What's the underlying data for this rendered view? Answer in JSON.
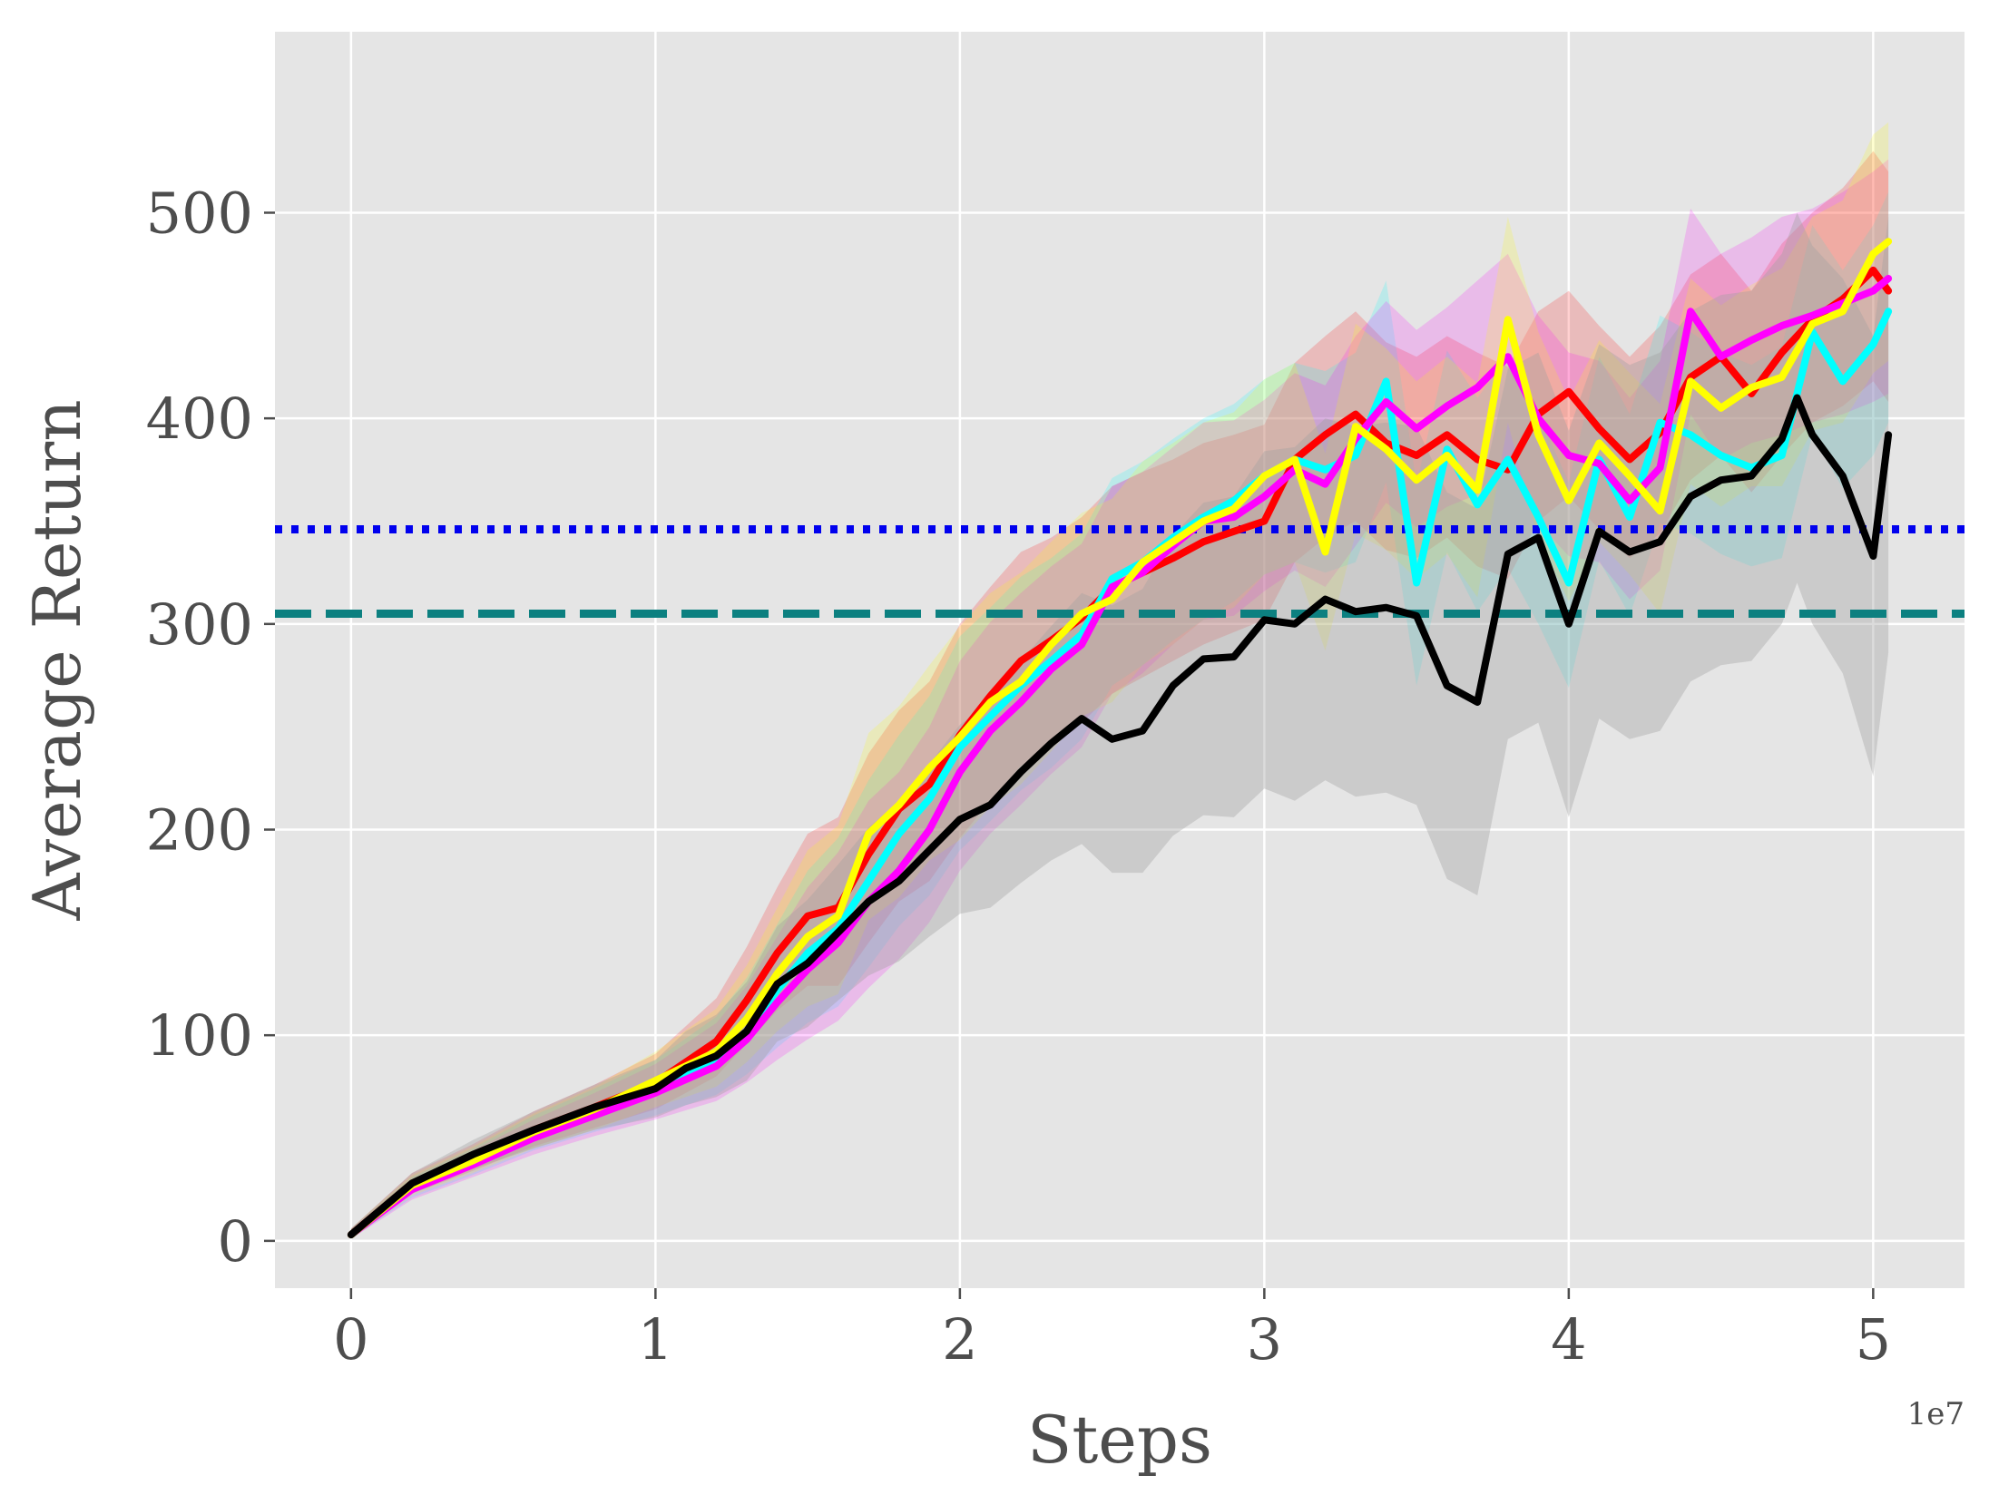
{
  "chart_data": {
    "type": "line",
    "title": "",
    "xlabel": "Steps",
    "ylabel": "Average Return",
    "x_offset_label": "1e7",
    "x_scale": 10000000,
    "xlim": [
      -0.25,
      5.3
    ],
    "ylim": [
      -23,
      588
    ],
    "xticks": [
      0,
      1,
      2,
      3,
      4,
      5
    ],
    "xtick_labels": [
      "0",
      "1",
      "2",
      "3",
      "4",
      "5"
    ],
    "yticks": [
      0,
      100,
      200,
      300,
      400,
      500
    ],
    "ytick_labels": [
      "0",
      "100",
      "200",
      "300",
      "400",
      "500"
    ],
    "grid": true,
    "background": "#e5e5e5",
    "grid_color": "#ffffff",
    "reference_lines": [
      {
        "y": 346,
        "color": "#0000ee",
        "style": "dotted"
      },
      {
        "y": 305,
        "color": "#0c8080",
        "style": "dashed"
      }
    ],
    "series": [
      {
        "color": "#ff0000",
        "x": [
          0,
          0.2,
          0.4,
          0.6,
          0.8,
          1.0,
          1.2,
          1.3,
          1.4,
          1.5,
          1.6,
          1.7,
          1.8,
          1.9,
          2.0,
          2.1,
          2.2,
          2.3,
          2.4,
          2.5,
          2.6,
          2.7,
          2.8,
          2.9,
          3.0,
          3.1,
          3.2,
          3.3,
          3.4,
          3.5,
          3.6,
          3.7,
          3.8,
          3.9,
          4.0,
          4.1,
          4.2,
          4.3,
          4.4,
          4.5,
          4.6,
          4.7,
          4.8,
          4.9,
          5.0,
          5.05
        ],
        "y": [
          3,
          28,
          40,
          54,
          65,
          77,
          97,
          117,
          140,
          158,
          162,
          188,
          210,
          222,
          246,
          265,
          282,
          292,
          303,
          318,
          325,
          332,
          340,
          345,
          350,
          380,
          392,
          402,
          388,
          382,
          392,
          380,
          375,
          402,
          413,
          395,
          380,
          393,
          420,
          430,
          412,
          432,
          448,
          458,
          472,
          462
        ],
        "band_upper": [
          6,
          33,
          47,
          63,
          76,
          91,
          118,
          143,
          172,
          198,
          206,
          237,
          258,
          272,
          300,
          318,
          335,
          342,
          352,
          367,
          374,
          380,
          388,
          392,
          397,
          427,
          440,
          452,
          437,
          430,
          440,
          432,
          425,
          452,
          462,
          445,
          430,
          445,
          470,
          480,
          462,
          485,
          500,
          512,
          530,
          520
        ],
        "band_lower": [
          1,
          23,
          34,
          46,
          55,
          64,
          80,
          96,
          112,
          124,
          124,
          145,
          165,
          175,
          196,
          214,
          231,
          240,
          252,
          266,
          274,
          282,
          290,
          296,
          302,
          330,
          342,
          350,
          336,
          332,
          342,
          328,
          322,
          350,
          362,
          346,
          332,
          344,
          370,
          382,
          364,
          382,
          398,
          406,
          418,
          408
        ]
      },
      {
        "color": "#00ffff",
        "x": [
          0,
          0.2,
          0.4,
          0.6,
          0.8,
          1.0,
          1.2,
          1.3,
          1.4,
          1.5,
          1.6,
          1.7,
          1.8,
          1.9,
          2.0,
          2.1,
          2.2,
          2.3,
          2.4,
          2.5,
          2.6,
          2.7,
          2.8,
          2.9,
          3.0,
          3.1,
          3.2,
          3.3,
          3.4,
          3.5,
          3.6,
          3.7,
          3.8,
          3.9,
          4.0,
          4.1,
          4.2,
          4.3,
          4.4,
          4.5,
          4.6,
          4.7,
          4.8,
          4.9,
          5.0,
          5.05
        ],
        "y": [
          3,
          26,
          38,
          52,
          63,
          74,
          88,
          102,
          122,
          140,
          152,
          175,
          198,
          215,
          240,
          255,
          270,
          282,
          295,
          322,
          330,
          342,
          352,
          360,
          372,
          380,
          375,
          382,
          418,
          320,
          385,
          358,
          380,
          352,
          320,
          380,
          352,
          398,
          392,
          382,
          376,
          382,
          442,
          418,
          436,
          452
        ],
        "band_upper": [
          6,
          31,
          45,
          61,
          74,
          88,
          109,
          128,
          154,
          180,
          196,
          224,
          246,
          265,
          294,
          308,
          323,
          332,
          344,
          371,
          379,
          390,
          400,
          407,
          419,
          427,
          423,
          432,
          467,
          368,
          433,
          410,
          430,
          402,
          369,
          430,
          402,
          450,
          442,
          432,
          426,
          435,
          494,
          472,
          494,
          510
        ],
        "band_lower": [
          1,
          21,
          32,
          44,
          53,
          61,
          71,
          81,
          94,
          106,
          114,
          133,
          153,
          168,
          190,
          204,
          219,
          230,
          244,
          270,
          280,
          292,
          302,
          311,
          324,
          330,
          325,
          330,
          369,
          270,
          335,
          306,
          327,
          300,
          269,
          331,
          304,
          349,
          344,
          334,
          328,
          332,
          392,
          366,
          382,
          398
        ]
      },
      {
        "color": "#ff00ff",
        "x": [
          0,
          0.2,
          0.4,
          0.6,
          0.8,
          1.0,
          1.2,
          1.3,
          1.4,
          1.5,
          1.6,
          1.7,
          1.8,
          1.9,
          2.0,
          2.1,
          2.2,
          2.3,
          2.4,
          2.5,
          2.6,
          2.7,
          2.8,
          2.9,
          3.0,
          3.1,
          3.2,
          3.3,
          3.4,
          3.5,
          3.6,
          3.7,
          3.8,
          3.9,
          4.0,
          4.1,
          4.2,
          4.3,
          4.4,
          4.5,
          4.6,
          4.7,
          4.8,
          4.9,
          5.0,
          5.05
        ],
        "y": [
          3,
          25,
          37,
          50,
          61,
          72,
          85,
          98,
          116,
          132,
          145,
          165,
          180,
          200,
          228,
          248,
          262,
          278,
          290,
          318,
          325,
          338,
          350,
          352,
          362,
          375,
          368,
          390,
          408,
          395,
          406,
          415,
          430,
          400,
          382,
          378,
          360,
          376,
          452,
          430,
          438,
          445,
          450,
          456,
          462,
          468
        ],
        "band_upper": [
          6,
          30,
          44,
          59,
          72,
          86,
          106,
          124,
          148,
          172,
          189,
          214,
          228,
          250,
          282,
          301,
          315,
          328,
          339,
          367,
          374,
          386,
          398,
          399,
          409,
          422,
          416,
          440,
          457,
          443,
          454,
          467,
          480,
          450,
          432,
          428,
          410,
          428,
          502,
          480,
          488,
          498,
          502,
          510,
          520,
          526
        ],
        "band_lower": [
          1,
          20,
          31,
          42,
          51,
          59,
          68,
          77,
          88,
          98,
          107,
          123,
          137,
          155,
          180,
          198,
          212,
          227,
          240,
          266,
          276,
          290,
          302,
          304,
          316,
          326,
          318,
          338,
          359,
          347,
          357,
          363,
          380,
          349,
          333,
          330,
          312,
          326,
          402,
          380,
          388,
          392,
          398,
          402,
          408,
          412
        ]
      },
      {
        "color": "#ffff00",
        "x": [
          0,
          0.2,
          0.4,
          0.6,
          0.8,
          1.0,
          1.2,
          1.3,
          1.4,
          1.5,
          1.6,
          1.7,
          1.8,
          1.9,
          2.0,
          2.1,
          2.2,
          2.3,
          2.4,
          2.5,
          2.6,
          2.7,
          2.8,
          2.9,
          3.0,
          3.1,
          3.2,
          3.3,
          3.4,
          3.5,
          3.6,
          3.7,
          3.8,
          3.9,
          4.0,
          4.1,
          4.2,
          4.3,
          4.4,
          4.5,
          4.6,
          4.7,
          4.8,
          4.9,
          5.0,
          5.05
        ],
        "y": [
          3,
          27,
          39,
          53,
          64,
          78,
          92,
          108,
          130,
          148,
          158,
          198,
          212,
          230,
          245,
          262,
          272,
          290,
          305,
          312,
          330,
          340,
          350,
          356,
          372,
          380,
          335,
          396,
          385,
          370,
          382,
          365,
          448,
          392,
          360,
          388,
          372,
          355,
          418,
          405,
          415,
          420,
          446,
          452,
          480,
          486
        ],
        "band_upper": [
          6,
          32,
          46,
          62,
          75,
          92,
          113,
          134,
          162,
          190,
          202,
          247,
          260,
          280,
          299,
          315,
          325,
          340,
          354,
          361,
          379,
          388,
          398,
          403,
          419,
          427,
          383,
          446,
          434,
          418,
          430,
          417,
          498,
          442,
          409,
          438,
          422,
          407,
          468,
          455,
          465,
          473,
          498,
          506,
          538,
          544
        ],
        "band_lower": [
          1,
          22,
          33,
          45,
          54,
          65,
          75,
          87,
          102,
          114,
          120,
          156,
          167,
          185,
          195,
          211,
          222,
          238,
          255,
          262,
          280,
          290,
          302,
          308,
          324,
          330,
          287,
          344,
          336,
          322,
          334,
          313,
          398,
          341,
          311,
          340,
          324,
          305,
          368,
          357,
          367,
          367,
          394,
          398,
          422,
          428
        ]
      },
      {
        "color": "#000000",
        "x": [
          0,
          0.2,
          0.4,
          0.6,
          0.8,
          1.0,
          1.1,
          1.2,
          1.3,
          1.4,
          1.5,
          1.6,
          1.7,
          1.8,
          1.9,
          2.0,
          2.1,
          2.2,
          2.3,
          2.4,
          2.5,
          2.6,
          2.7,
          2.8,
          2.9,
          3.0,
          3.1,
          3.2,
          3.3,
          3.4,
          3.5,
          3.6,
          3.7,
          3.8,
          3.9,
          4.0,
          4.1,
          4.2,
          4.3,
          4.4,
          4.5,
          4.6,
          4.7,
          4.75,
          4.8,
          4.9,
          5.0,
          5.05
        ],
        "y": [
          3,
          28,
          42,
          54,
          65,
          74,
          84,
          90,
          102,
          125,
          135,
          150,
          165,
          175,
          190,
          205,
          212,
          228,
          242,
          254,
          244,
          248,
          270,
          283,
          284,
          302,
          300,
          312,
          306,
          308,
          304,
          270,
          262,
          334,
          342,
          300,
          345,
          335,
          340,
          362,
          370,
          372,
          390,
          410,
          392,
          372,
          333,
          392
        ],
        "band_upper": [
          6,
          33,
          49,
          63,
          76,
          88,
          102,
          110,
          126,
          153,
          166,
          183,
          201,
          214,
          232,
          251,
          262,
          282,
          299,
          315,
          309,
          317,
          343,
          359,
          362,
          384,
          386,
          400,
          396,
          398,
          396,
          364,
          356,
          424,
          432,
          394,
          436,
          426,
          432,
          452,
          460,
          462,
          480,
          500,
          484,
          468,
          440,
          498
        ],
        "band_lower": [
          1,
          23,
          35,
          45,
          54,
          60,
          66,
          70,
          78,
          97,
          104,
          117,
          129,
          136,
          148,
          159,
          162,
          174,
          185,
          193,
          179,
          179,
          197,
          207,
          206,
          220,
          214,
          224,
          216,
          218,
          212,
          176,
          168,
          244,
          252,
          206,
          254,
          244,
          248,
          272,
          280,
          282,
          300,
          320,
          300,
          276,
          226,
          286
        ]
      }
    ]
  }
}
